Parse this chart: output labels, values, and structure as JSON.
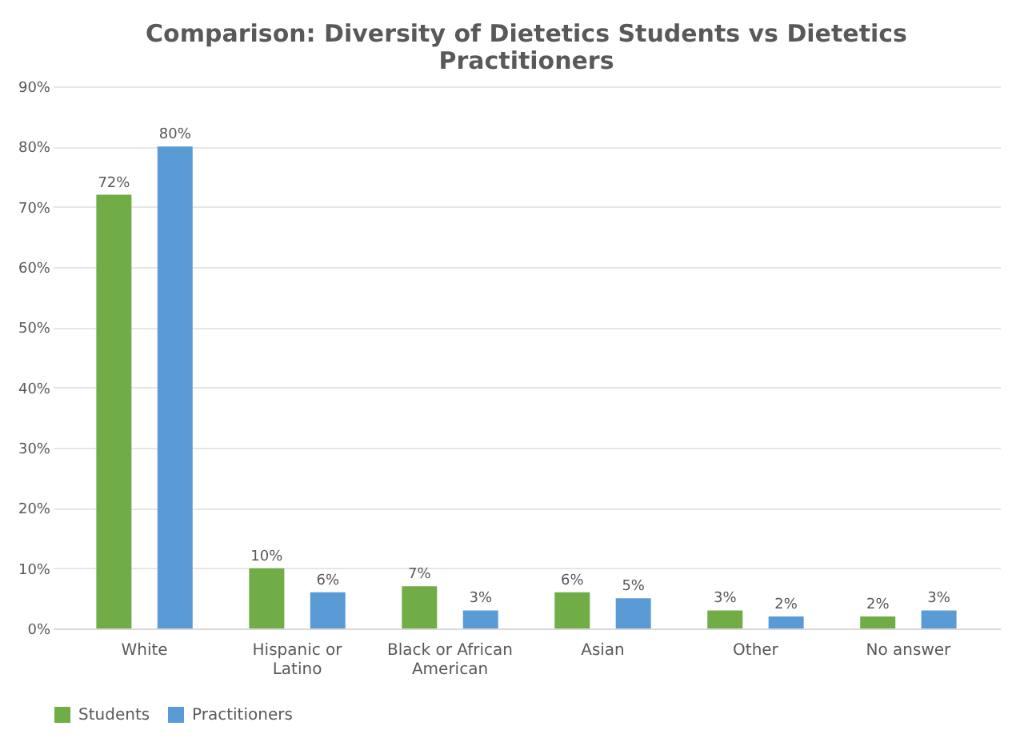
{
  "chart_data": {
    "type": "bar",
    "title": "Comparison: Diversity of Dietetics Students vs Dietetics Practitioners",
    "categories": [
      "White",
      "Hispanic or Latino",
      "Black or African American",
      "Asian",
      "Other",
      "No answer"
    ],
    "series": [
      {
        "name": "Students",
        "color": "#70ad47",
        "values": [
          72,
          10,
          7,
          6,
          3,
          2
        ],
        "value_labels": [
          "72%",
          "10%",
          "7%",
          "6%",
          "3%",
          "2%"
        ]
      },
      {
        "name": "Practitioners",
        "color": "#5b9bd5",
        "values": [
          80,
          6,
          3,
          5,
          2,
          3
        ],
        "value_labels": [
          "80%",
          "6%",
          "3%",
          "5%",
          "2%",
          "3%"
        ]
      }
    ],
    "ylim": [
      0,
      90
    ],
    "yticks": [
      {
        "value": 0,
        "label": "0%"
      },
      {
        "value": 10,
        "label": "10%"
      },
      {
        "value": 20,
        "label": "20%"
      },
      {
        "value": 30,
        "label": "30%"
      },
      {
        "value": 40,
        "label": "40%"
      },
      {
        "value": 50,
        "label": "50%"
      },
      {
        "value": 60,
        "label": "60%"
      },
      {
        "value": 70,
        "label": "70%"
      },
      {
        "value": 80,
        "label": "80%"
      },
      {
        "value": 90,
        "label": "90%"
      }
    ],
    "grid": "y",
    "legend": "bottom"
  }
}
